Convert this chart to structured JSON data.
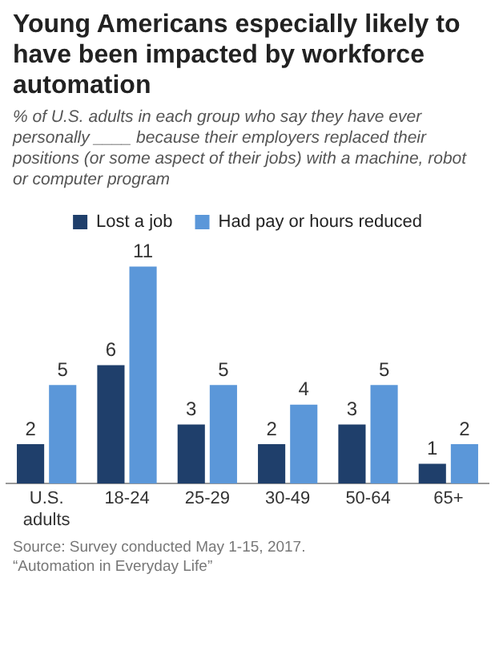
{
  "chart_data": {
    "type": "bar",
    "title": "Young Americans especially likely to have been impacted by workforce automation",
    "subtitle": "% of U.S. adults in each group who say they have ever personally ____ because their employers replaced their positions (or some aspect of their jobs) with a machine, robot or computer program",
    "categories": [
      "U.S. adults",
      "18-24",
      "25-29",
      "30-49",
      "50-64",
      "65+"
    ],
    "series": [
      {
        "name": "Lost a job",
        "color": "#1f3f6b",
        "values": [
          2,
          6,
          3,
          2,
          3,
          1
        ]
      },
      {
        "name": "Had pay or hours reduced",
        "color": "#5b97d9",
        "values": [
          5,
          11,
          5,
          4,
          5,
          2
        ]
      }
    ],
    "data_labels": true,
    "legend": "top",
    "grid": false,
    "annotations": [
      "Source: Survey conducted May 1-15, 2017.",
      "“Automation in Everyday Life”"
    ]
  }
}
